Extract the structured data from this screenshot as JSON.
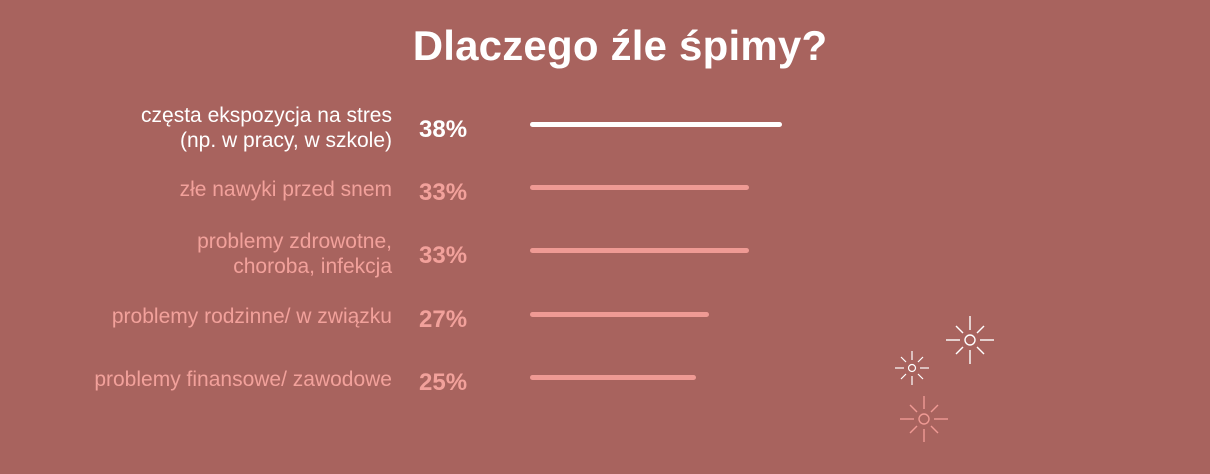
{
  "chart_data": {
    "type": "bar",
    "orientation": "horizontal",
    "title": "Dlaczego źle śpimy?",
    "categories": [
      [
        "częsta ekspozycja na stres",
        "(np. w pracy, w szkole)"
      ],
      [
        "złe nawyki przed snem"
      ],
      [
        "problemy zdrowotne,",
        "choroba, infekcja"
      ],
      [
        "problemy rodzinne/ w związku"
      ],
      [
        "problemy finansowe/ zawodowe"
      ]
    ],
    "values": [
      38,
      33,
      33,
      27,
      25
    ],
    "value_labels": [
      "38%",
      "33%",
      "33%",
      "27%",
      "25%"
    ],
    "highlight_index": 0,
    "colors": {
      "background": "#a8635e",
      "highlight": "#ffffff",
      "default_text": "#f2a19b",
      "default_bar": "#ef9a94"
    },
    "grid": false,
    "legend": "none"
  },
  "decorations": {
    "icons": [
      "sparkle-icon",
      "sparkle-icon",
      "sparkle-icon"
    ]
  }
}
